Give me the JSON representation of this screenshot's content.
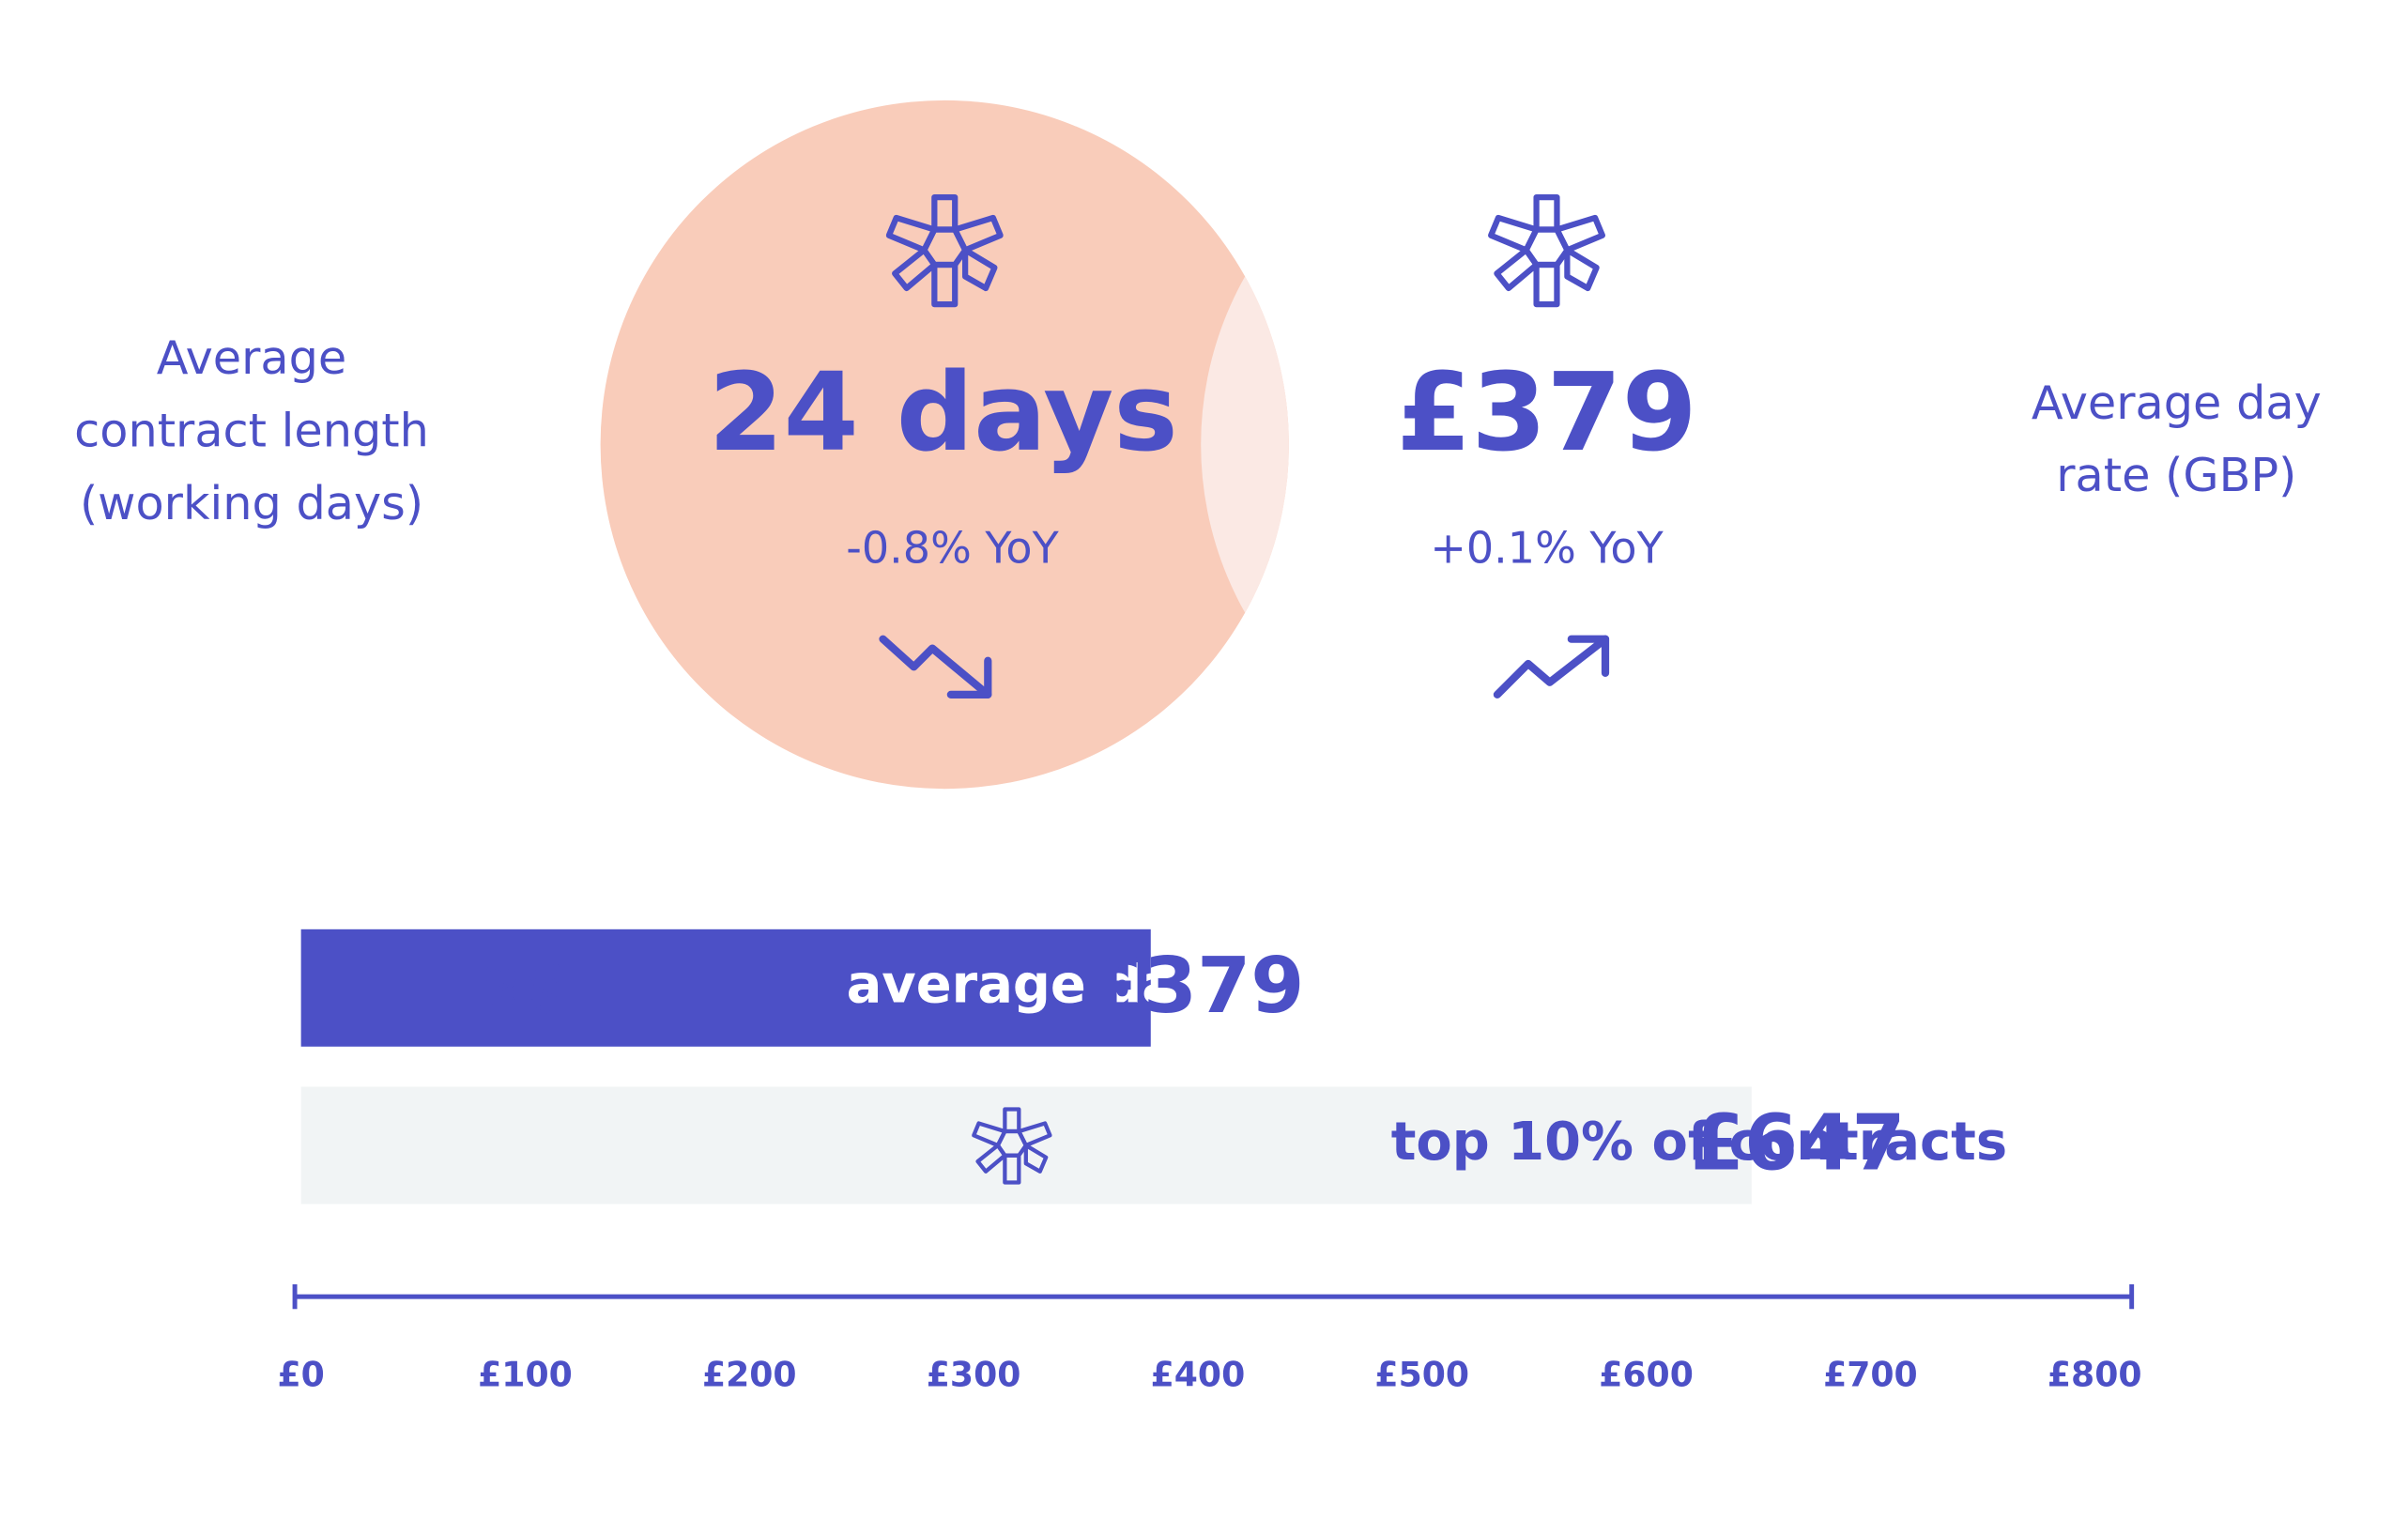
{
  "stats": [
    {
      "label_lines": [
        "Average",
        "contract length",
        "(working days)"
      ],
      "value": "24 days",
      "change": "-0.8% YoY"
    },
    {
      "label_lines": [
        "Average day",
        "rate (GBP)"
      ],
      "value": "£379",
      "change": "+0.1% YoY"
    }
  ],
  "chart_data": {
    "type": "bar",
    "orientation": "horizontal",
    "categories": [
      "average day rate",
      "top 10% of contracts"
    ],
    "values": [
      379,
      647
    ],
    "value_labels": [
      "£379",
      "£647"
    ],
    "colors": [
      "#4c50c6",
      "#f1f4f5"
    ],
    "xlim": [
      0,
      800
    ],
    "xticks": [
      {
        "value": 0,
        "label": "£0"
      },
      {
        "value": 100,
        "label": "£100"
      },
      {
        "value": 200,
        "label": "£200"
      },
      {
        "value": 300,
        "label": "£300"
      },
      {
        "value": 400,
        "label": "£400"
      },
      {
        "value": 500,
        "label": "£500"
      },
      {
        "value": 600,
        "label": "£600"
      },
      {
        "value": 700,
        "label": "£700"
      },
      {
        "value": 800,
        "label": "£800"
      }
    ],
    "grid": false
  }
}
